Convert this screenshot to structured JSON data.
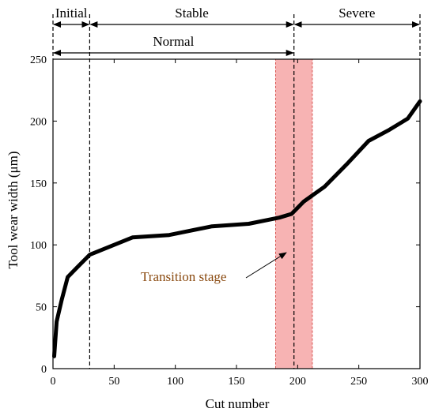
{
  "chart_data": {
    "type": "line",
    "xlabel": "Cut number",
    "ylabel": "Tool wear width (μm)",
    "xlim": [
      0,
      300
    ],
    "ylim": [
      0,
      250
    ],
    "x_ticks": [
      0,
      50,
      100,
      150,
      200,
      250,
      300
    ],
    "y_ticks": [
      0,
      50,
      100,
      150,
      200,
      250
    ],
    "grid": false,
    "series": [
      {
        "color": "#000000",
        "x": [
          1,
          3,
          7,
          12,
          20,
          30,
          45,
          65,
          95,
          130,
          160,
          185,
          195,
          205,
          222,
          240,
          258,
          275,
          290,
          300
        ],
        "y": [
          10,
          38,
          55,
          74,
          82,
          92,
          98,
          106,
          108,
          115,
          117,
          122,
          125,
          135,
          147,
          165,
          184,
          193,
          202,
          216
        ]
      }
    ],
    "stage_dividers": [
      30,
      197
    ],
    "stages": [
      {
        "label": "Initial",
        "start": 0,
        "end": 30
      },
      {
        "label": "Stable",
        "start": 30,
        "end": 197
      },
      {
        "label": "Severe",
        "start": 197,
        "end": 300
      },
      {
        "label": "Normal",
        "start": 0,
        "end": 197
      }
    ],
    "transition_band": {
      "start": 182,
      "end": 212,
      "color": "#f7b3b3",
      "border_color": "#d9534f"
    },
    "annotations": [
      {
        "text": "Transition stage",
        "target_x": 192,
        "target_y": 95
      }
    ]
  }
}
